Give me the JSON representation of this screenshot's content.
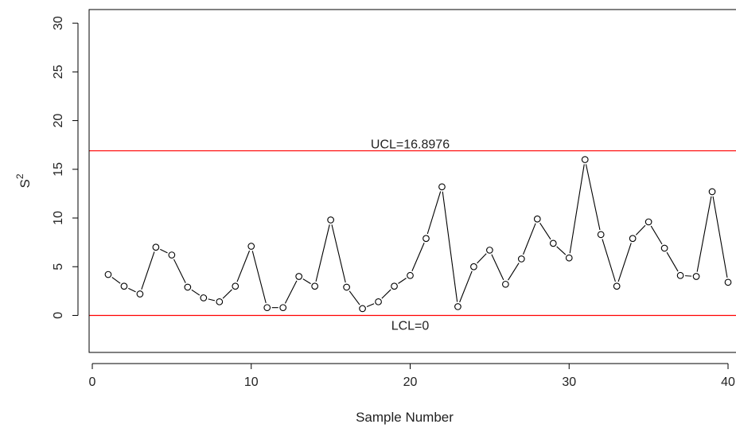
{
  "chart_data": {
    "type": "line",
    "xlabel": "Sample Number",
    "ylabel": "S",
    "ylabel_superscript": "2",
    "xlim": [
      -0.2,
      40.5
    ],
    "ylim": [
      -3.8,
      31.4
    ],
    "xticks": [
      0,
      10,
      20,
      30,
      40
    ],
    "yticks": [
      0,
      5,
      10,
      15,
      20,
      25,
      30
    ],
    "grid": false,
    "series": [
      {
        "marker": "open-circle",
        "color": "#000000",
        "x": [
          1,
          2,
          3,
          4,
          5,
          6,
          7,
          8,
          9,
          10,
          11,
          12,
          13,
          14,
          15,
          16,
          17,
          18,
          19,
          20,
          21,
          22,
          23,
          24,
          25,
          26,
          27,
          28,
          29,
          30,
          31,
          32,
          33,
          34,
          35,
          36,
          37,
          38,
          39,
          40
        ],
        "values": [
          4.2,
          3.0,
          2.2,
          7.0,
          6.2,
          2.9,
          1.8,
          1.4,
          3.0,
          7.1,
          0.8,
          0.8,
          4.0,
          3.0,
          9.8,
          2.9,
          0.7,
          1.4,
          3.0,
          4.1,
          7.9,
          13.2,
          0.9,
          5.0,
          6.7,
          3.2,
          5.8,
          9.9,
          7.4,
          5.9,
          16.0,
          8.3,
          3.0,
          7.9,
          9.6,
          6.9,
          4.1,
          4.0,
          12.7,
          3.4
        ]
      }
    ],
    "reference_lines": [
      {
        "value": 16.8976,
        "label": "UCL=16.8976",
        "label_x": 20,
        "label_position": "above",
        "color": "#ff0000"
      },
      {
        "value": 0,
        "label": "LCL=0",
        "label_x": 20,
        "label_position": "below",
        "color": "#ff0000"
      }
    ]
  }
}
